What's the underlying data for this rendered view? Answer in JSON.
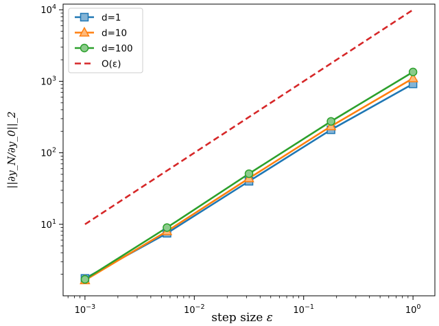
{
  "chart_data": {
    "type": "line",
    "xscale": "log",
    "yscale": "log",
    "xlim": [
      0.000631,
      1.585
    ],
    "ylim": [
      1.0,
      12000
    ],
    "xlabel": "step size",
    "xlabel_symbol": "ε",
    "ylabel": "||∂y_N/∂y_0||_2",
    "grid": false,
    "legend_position": "upper-left",
    "x_ticks": [
      {
        "value": 0.001,
        "base": "10",
        "exp": "−3"
      },
      {
        "value": 0.01,
        "base": "10",
        "exp": "−2"
      },
      {
        "value": 0.1,
        "base": "10",
        "exp": "−1"
      },
      {
        "value": 1,
        "base": "10",
        "exp": "0"
      }
    ],
    "y_ticks": [
      {
        "value": 10,
        "base": "10",
        "exp": "1"
      },
      {
        "value": 100,
        "base": "10",
        "exp": "2"
      },
      {
        "value": 1000,
        "base": "10",
        "exp": "3"
      },
      {
        "value": 10000,
        "base": "10",
        "exp": "4"
      }
    ],
    "x": [
      0.001,
      0.005623,
      0.031623,
      0.177828,
      1.0
    ],
    "series": [
      {
        "name": "d=1",
        "color": "#1f77b4",
        "marker": "square",
        "style": "solid",
        "values": [
          1.75,
          7.5,
          40,
          210,
          920
        ]
      },
      {
        "name": "d=10",
        "color": "#ff7f0e",
        "marker": "triangle",
        "style": "solid",
        "values": [
          1.65,
          8.0,
          44,
          235,
          1100
        ]
      },
      {
        "name": "d=100",
        "color": "#2ca02c",
        "marker": "circle",
        "style": "solid",
        "values": [
          1.7,
          9.0,
          51,
          275,
          1350
        ]
      },
      {
        "name": "O(ε)",
        "color": "#d62728",
        "marker": "none",
        "style": "dashed",
        "x": [
          0.001,
          1.0
        ],
        "values": [
          10,
          10000
        ]
      }
    ]
  }
}
